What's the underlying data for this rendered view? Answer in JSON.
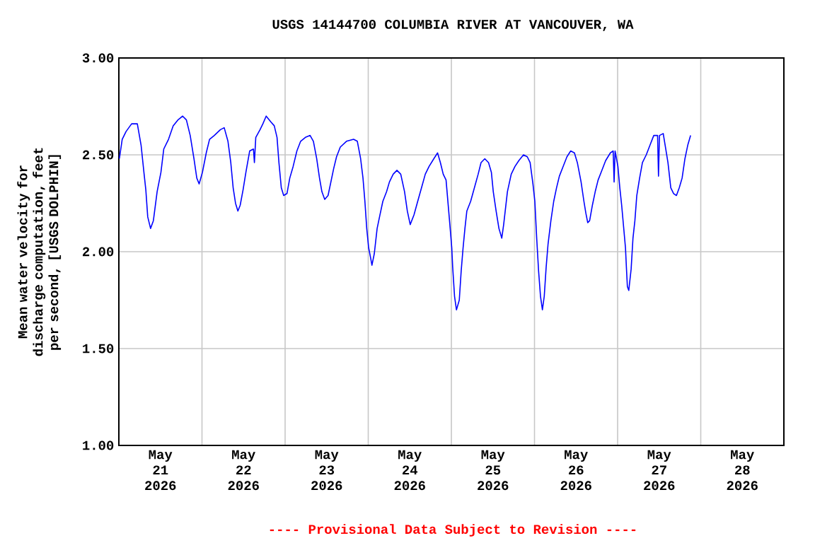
{
  "chart_data": {
    "type": "line",
    "title": "USGS 14144700 COLUMBIA RIVER AT VANCOUVER, WA",
    "ylabel": "Mean water velocity for discharge computation, feet per second, [USGS DOLPHIN]",
    "annotations": [
      "---- Provisional Data Subject to Revision ----"
    ],
    "color": "#0000ff",
    "grid": true,
    "xlim": [
      "2026-05-21T00:00",
      "2026-05-29T00:00"
    ],
    "ylim": [
      1.0,
      3.0
    ],
    "yticks": [
      {
        "value": 1.0,
        "label": "1.00"
      },
      {
        "value": 1.5,
        "label": "1.50"
      },
      {
        "value": 2.0,
        "label": "2.00"
      },
      {
        "value": 2.5,
        "label": "2.50"
      },
      {
        "value": 3.0,
        "label": "3.00"
      }
    ],
    "xticks": [
      {
        "value": "2026-05-21T12:00",
        "label": "May 21 2026"
      },
      {
        "value": "2026-05-22T00:00",
        "label": null
      },
      {
        "value": "2026-05-22T12:00",
        "label": "May 22 2026"
      },
      {
        "value": "2026-05-23T00:00",
        "label": null
      },
      {
        "value": "2026-05-23T12:00",
        "label": "May 23 2026"
      },
      {
        "value": "2026-05-24T00:00",
        "label": null
      },
      {
        "value": "2026-05-24T12:00",
        "label": "May 24 2026"
      },
      {
        "value": "2026-05-25T00:00",
        "label": null
      },
      {
        "value": "2026-05-25T12:00",
        "label": "May 25 2026"
      },
      {
        "value": "2026-05-26T00:00",
        "label": null
      },
      {
        "value": "2026-05-26T12:00",
        "label": "May 26 2026"
      },
      {
        "value": "2026-05-27T00:00",
        "label": null
      },
      {
        "value": "2026-05-27T12:00",
        "label": "May 27 2026"
      },
      {
        "value": "2026-05-28T00:00",
        "label": null
      },
      {
        "value": "2026-05-28T12:00",
        "label": "May 28 2026"
      }
    ],
    "x": [
      "2026-05-21T00:09",
      "2026-05-21T00:58",
      "2026-05-21T02:04",
      "2026-05-21T03:41",
      "2026-05-21T05:20",
      "2026-05-21T06:25",
      "2026-05-21T07:14",
      "2026-05-21T07:47",
      "2026-05-21T08:20",
      "2026-05-21T09:09",
      "2026-05-21T09:58",
      "2026-05-21T11:03",
      "2026-05-21T12:09",
      "2026-05-21T12:58",
      "2026-05-21T14:20",
      "2026-05-21T15:41",
      "2026-05-21T17:03",
      "2026-05-21T18:25",
      "2026-05-21T19:30",
      "2026-05-21T20:36",
      "2026-05-21T21:41",
      "2026-05-21T22:30",
      "2026-05-21T23:11",
      "2026-05-22T00:08",
      "2026-05-22T01:14",
      "2026-05-22T02:11",
      "2026-05-22T03:33",
      "2026-05-22T05:19",
      "2026-05-22T06:25",
      "2026-05-22T07:30",
      "2026-05-22T08:19",
      "2026-05-22T09:00",
      "2026-05-22T09:41",
      "2026-05-22T10:22",
      "2026-05-22T11:02",
      "2026-05-22T11:52",
      "2026-05-22T12:41",
      "2026-05-22T13:46",
      "2026-05-22T14:52",
      "2026-05-22T15:08",
      "2026-05-22T15:32",
      "2026-05-22T16:46",
      "2026-05-22T17:35",
      "2026-05-22T18:32",
      "2026-05-22T19:54",
      "2026-05-22T20:52",
      "2026-05-22T21:40",
      "2026-05-22T22:13",
      "2026-05-22T22:54",
      "2026-05-22T23:35",
      "2026-05-23T00:32",
      "2026-05-23T01:21",
      "2026-05-23T02:19",
      "2026-05-23T03:24",
      "2026-05-23T04:29",
      "2026-05-23T05:51",
      "2026-05-23T07:13",
      "2026-05-23T08:10",
      "2026-05-23T09:07",
      "2026-05-23T09:56",
      "2026-05-23T10:37",
      "2026-05-23T11:26",
      "2026-05-23T12:24",
      "2026-05-23T13:13",
      "2026-05-23T14:02",
      "2026-05-23T14:51",
      "2026-05-23T15:56",
      "2026-05-23T17:43",
      "2026-05-23T19:46",
      "2026-05-23T20:51",
      "2026-05-23T21:48",
      "2026-05-23T22:29",
      "2026-05-23T23:02",
      "2026-05-23T23:34",
      "2026-05-24T00:07",
      "2026-05-24T00:40",
      "2026-05-24T01:04",
      "2026-05-24T01:45",
      "2026-05-24T02:34",
      "2026-05-24T03:23",
      "2026-05-24T04:13",
      "2026-05-24T05:18",
      "2026-05-24T06:07",
      "2026-05-24T07:12",
      "2026-05-24T08:17",
      "2026-05-24T09:23",
      "2026-05-24T10:29",
      "2026-05-24T11:17",
      "2026-05-24T12:07",
      "2026-05-24T13:12",
      "2026-05-24T14:17",
      "2026-05-24T15:23",
      "2026-05-24T16:28",
      "2026-05-24T17:34",
      "2026-05-24T18:56",
      "2026-05-24T20:01",
      "2026-05-24T20:50",
      "2026-05-24T21:39",
      "2026-05-24T22:28",
      "2026-05-24T23:34",
      "2026-05-25T00:07",
      "2026-05-25T00:23",
      "2026-05-25T00:55",
      "2026-05-25T01:28",
      "2026-05-25T02:17",
      "2026-05-25T02:50",
      "2026-05-25T03:23",
      "2026-05-25T03:55",
      "2026-05-25T04:28",
      "2026-05-25T05:34",
      "2026-05-25T06:39",
      "2026-05-25T07:44",
      "2026-05-25T08:34",
      "2026-05-25T09:39",
      "2026-05-25T10:44",
      "2026-05-25T11:33",
      "2026-05-25T12:06",
      "2026-05-25T12:55",
      "2026-05-25T13:44",
      "2026-05-25T14:33",
      "2026-05-25T15:06",
      "2026-05-25T16:11",
      "2026-05-25T17:17",
      "2026-05-25T18:22",
      "2026-05-25T19:28",
      "2026-05-25T20:49",
      "2026-05-25T21:55",
      "2026-05-25T22:44",
      "2026-05-25T23:33",
      "2026-05-26T00:06",
      "2026-05-26T00:38",
      "2026-05-26T01:11",
      "2026-05-26T01:44",
      "2026-05-26T02:17",
      "2026-05-26T02:49",
      "2026-05-26T03:22",
      "2026-05-26T03:55",
      "2026-05-26T04:44",
      "2026-05-26T05:33",
      "2026-05-26T06:22",
      "2026-05-26T07:11",
      "2026-05-26T08:16",
      "2026-05-26T09:22",
      "2026-05-26T10:27",
      "2026-05-26T11:32",
      "2026-05-26T12:22",
      "2026-05-26T13:27",
      "2026-05-26T14:16",
      "2026-05-26T14:49",
      "2026-05-26T15:22",
      "2026-05-26T15:55",
      "2026-05-26T16:43",
      "2026-05-26T17:32",
      "2026-05-26T18:22",
      "2026-05-26T19:27",
      "2026-05-26T20:32",
      "2026-05-26T21:54",
      "2026-05-26T22:43",
      "2026-05-26T22:59",
      "2026-05-26T23:16",
      "2026-05-27T00:05",
      "2026-05-27T00:38",
      "2026-05-27T01:10",
      "2026-05-27T01:43",
      "2026-05-27T02:16",
      "2026-05-27T02:32",
      "2026-05-27T02:49",
      "2026-05-27T03:13",
      "2026-05-27T03:54",
      "2026-05-27T04:26",
      "2026-05-27T04:59",
      "2026-05-27T05:32",
      "2026-05-27T06:21",
      "2026-05-27T07:10",
      "2026-05-27T08:16",
      "2026-05-27T09:21",
      "2026-05-27T10:26",
      "2026-05-27T11:32",
      "2026-05-27T11:48",
      "2026-05-27T12:05",
      "2026-05-27T13:10",
      "2026-05-27T13:43",
      "2026-05-27T14:32",
      "2026-05-27T15:21",
      "2026-05-27T16:10",
      "2026-05-27T16:59",
      "2026-05-27T17:48",
      "2026-05-27T18:37",
      "2026-05-27T19:26",
      "2026-05-27T20:15",
      "2026-05-27T21:04"
    ],
    "values": [
      2.48,
      2.58,
      2.62,
      2.66,
      2.66,
      2.55,
      2.41,
      2.32,
      2.18,
      2.12,
      2.16,
      2.31,
      2.41,
      2.53,
      2.58,
      2.65,
      2.68,
      2.7,
      2.68,
      2.6,
      2.48,
      2.38,
      2.35,
      2.41,
      2.51,
      2.58,
      2.6,
      2.63,
      2.64,
      2.57,
      2.46,
      2.33,
      2.25,
      2.21,
      2.24,
      2.32,
      2.41,
      2.52,
      2.53,
      2.46,
      2.59,
      2.63,
      2.66,
      2.7,
      2.67,
      2.65,
      2.59,
      2.46,
      2.33,
      2.29,
      2.3,
      2.38,
      2.44,
      2.52,
      2.57,
      2.59,
      2.6,
      2.57,
      2.48,
      2.38,
      2.31,
      2.27,
      2.29,
      2.36,
      2.43,
      2.49,
      2.54,
      2.57,
      2.58,
      2.57,
      2.48,
      2.38,
      2.26,
      2.12,
      2.02,
      1.97,
      1.93,
      1.99,
      2.12,
      2.19,
      2.26,
      2.31,
      2.36,
      2.4,
      2.42,
      2.4,
      2.31,
      2.21,
      2.14,
      2.19,
      2.26,
      2.33,
      2.4,
      2.44,
      2.48,
      2.51,
      2.46,
      2.4,
      2.37,
      2.14,
      2.02,
      1.92,
      1.77,
      1.7,
      1.75,
      1.9,
      2.02,
      2.12,
      2.21,
      2.26,
      2.33,
      2.4,
      2.46,
      2.48,
      2.46,
      2.41,
      2.31,
      2.21,
      2.12,
      2.07,
      2.14,
      2.31,
      2.4,
      2.44,
      2.47,
      2.5,
      2.49,
      2.46,
      2.35,
      2.26,
      2.07,
      1.9,
      1.77,
      1.7,
      1.77,
      1.92,
      2.04,
      2.16,
      2.26,
      2.33,
      2.39,
      2.44,
      2.49,
      2.52,
      2.51,
      2.46,
      2.36,
      2.26,
      2.2,
      2.15,
      2.16,
      2.24,
      2.31,
      2.37,
      2.42,
      2.47,
      2.51,
      2.52,
      2.36,
      2.52,
      2.44,
      2.33,
      2.24,
      2.13,
      2.02,
      1.92,
      1.82,
      1.8,
      1.91,
      2.07,
      2.16,
      2.29,
      2.38,
      2.46,
      2.5,
      2.55,
      2.6,
      2.6,
      2.39,
      2.6,
      2.61,
      2.55,
      2.46,
      2.33,
      2.3,
      2.29,
      2.33,
      2.38,
      2.48,
      2.55,
      2.6
    ]
  }
}
